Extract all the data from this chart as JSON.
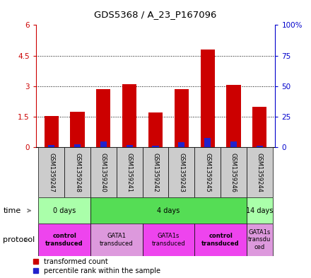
{
  "title": "GDS5368 / A_23_P167096",
  "samples": [
    "GSM1359247",
    "GSM1359248",
    "GSM1359240",
    "GSM1359241",
    "GSM1359242",
    "GSM1359243",
    "GSM1359245",
    "GSM1359246",
    "GSM1359244"
  ],
  "transformed_counts": [
    1.55,
    1.75,
    2.85,
    3.1,
    1.7,
    2.85,
    4.8,
    3.05,
    2.0
  ],
  "percentile_ranks_scaled": [
    0.12,
    0.15,
    0.3,
    0.12,
    0.07,
    0.25,
    0.45,
    0.3,
    0.08
  ],
  "ylim_left": [
    0,
    6
  ],
  "ylim_right": [
    0,
    100
  ],
  "yticks_left": [
    0,
    1.5,
    3.0,
    4.5,
    6.0
  ],
  "ytick_labels_left": [
    "0",
    "1.5",
    "3",
    "4.5",
    "6"
  ],
  "yticks_right": [
    0,
    25,
    50,
    75,
    100
  ],
  "ytick_labels_right": [
    "0",
    "25",
    "50",
    "75",
    "100%"
  ],
  "bar_color": "#cc0000",
  "percentile_color": "#2222cc",
  "sample_bg_color": "#cccccc",
  "time_groups": [
    {
      "label": "0 days",
      "start": 0,
      "end": 2,
      "color": "#aaffaa"
    },
    {
      "label": "4 days",
      "start": 2,
      "end": 8,
      "color": "#55dd55"
    },
    {
      "label": "14 days",
      "start": 8,
      "end": 9,
      "color": "#aaffaa"
    }
  ],
  "protocol_groups": [
    {
      "label": "control\ntransduced",
      "start": 0,
      "end": 2,
      "color": "#ee44ee",
      "bold": true
    },
    {
      "label": "GATA1\ntransduced",
      "start": 2,
      "end": 4,
      "color": "#dd99dd",
      "bold": false
    },
    {
      "label": "GATA1s\ntransduced",
      "start": 4,
      "end": 6,
      "color": "#ee44ee",
      "bold": false
    },
    {
      "label": "control\ntransduced",
      "start": 6,
      "end": 8,
      "color": "#ee44ee",
      "bold": true
    },
    {
      "label": "GATA1s\ntransdu\nced",
      "start": 8,
      "end": 9,
      "color": "#dd99dd",
      "bold": false
    }
  ],
  "time_label": "time",
  "protocol_label": "protocol"
}
